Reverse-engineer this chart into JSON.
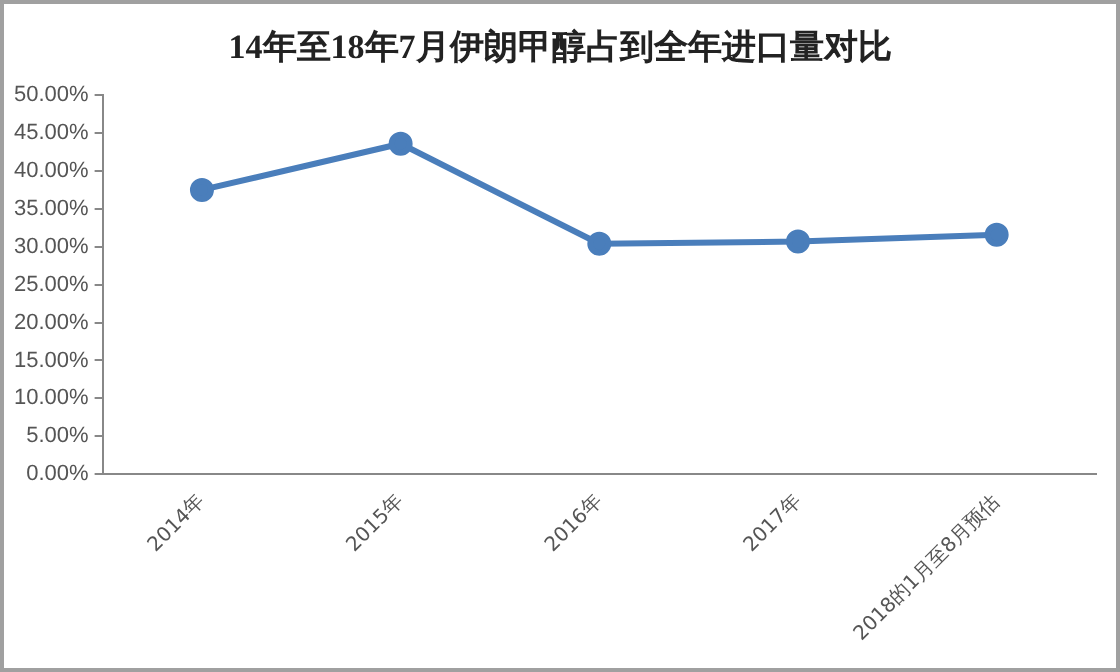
{
  "chart_data": {
    "type": "line",
    "title": "14年至18年7月伊朗甲醇占到全年进口量对比",
    "categories": [
      "2014年",
      "2015年",
      "2016年",
      "2017年",
      "2018的1月至8月预估"
    ],
    "series": [
      {
        "color": "#4a7ebb",
        "values": [
          37.5,
          43.6,
          30.4,
          30.7,
          31.6
        ]
      }
    ],
    "ylim": [
      0,
      50
    ],
    "yticks": [
      {
        "value": 0,
        "label": "0.00%"
      },
      {
        "value": 5,
        "label": "5.00%"
      },
      {
        "value": 10,
        "label": "10.00%"
      },
      {
        "value": 15,
        "label": "15.00%"
      },
      {
        "value": 20,
        "label": "20.00%"
      },
      {
        "value": 25,
        "label": "25.00%"
      },
      {
        "value": 30,
        "label": "30.00%"
      },
      {
        "value": 35,
        "label": "35.00%"
      },
      {
        "value": 40,
        "label": "40.00%"
      },
      {
        "value": 45,
        "label": "45.00%"
      },
      {
        "value": 50,
        "label": "50.00%"
      }
    ],
    "grid": false,
    "legend": false,
    "marker": "circle",
    "line_style": "solid"
  }
}
